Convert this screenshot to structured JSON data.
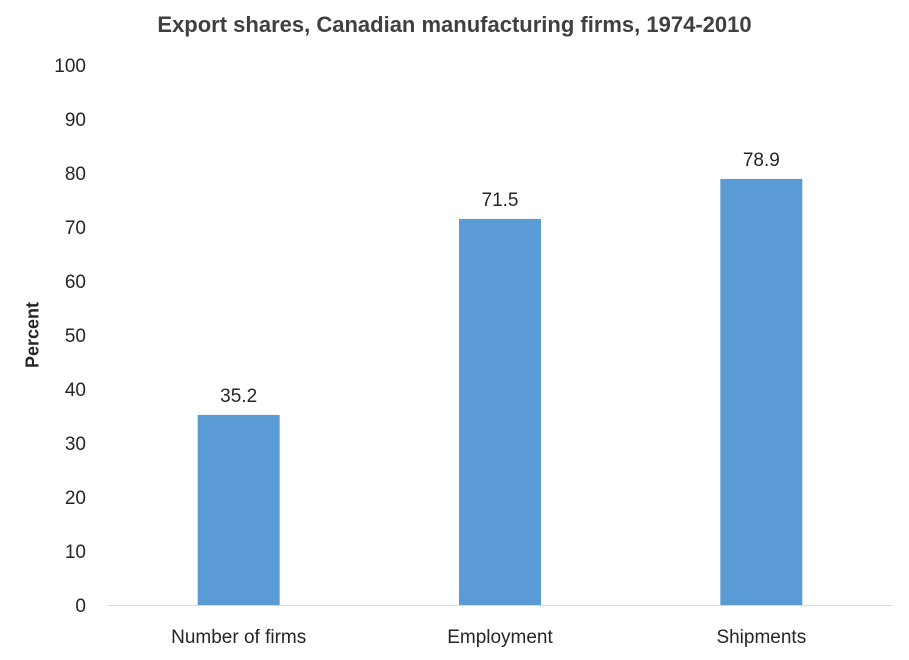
{
  "chart_data": {
    "type": "bar",
    "title": "Export shares, Canadian manufacturing firms, 1974-2010",
    "xlabel": "",
    "ylabel": "Percent",
    "categories": [
      "Number of firms",
      "Employment",
      "Shipments"
    ],
    "values": [
      35.2,
      71.5,
      78.9
    ],
    "data_labels": [
      "35.2",
      "71.5",
      "78.9"
    ],
    "ylim": [
      0,
      100
    ],
    "yticks": [
      0,
      10,
      20,
      30,
      40,
      50,
      60,
      70,
      80,
      90,
      100
    ],
    "ytick_labels": [
      "0",
      "10",
      "20",
      "30",
      "40",
      "50",
      "60",
      "70",
      "80",
      "90",
      "100"
    ],
    "grid": false,
    "legend": "none",
    "bar_color": "#5B9BD5",
    "axis_color": "#D9D9D9"
  }
}
